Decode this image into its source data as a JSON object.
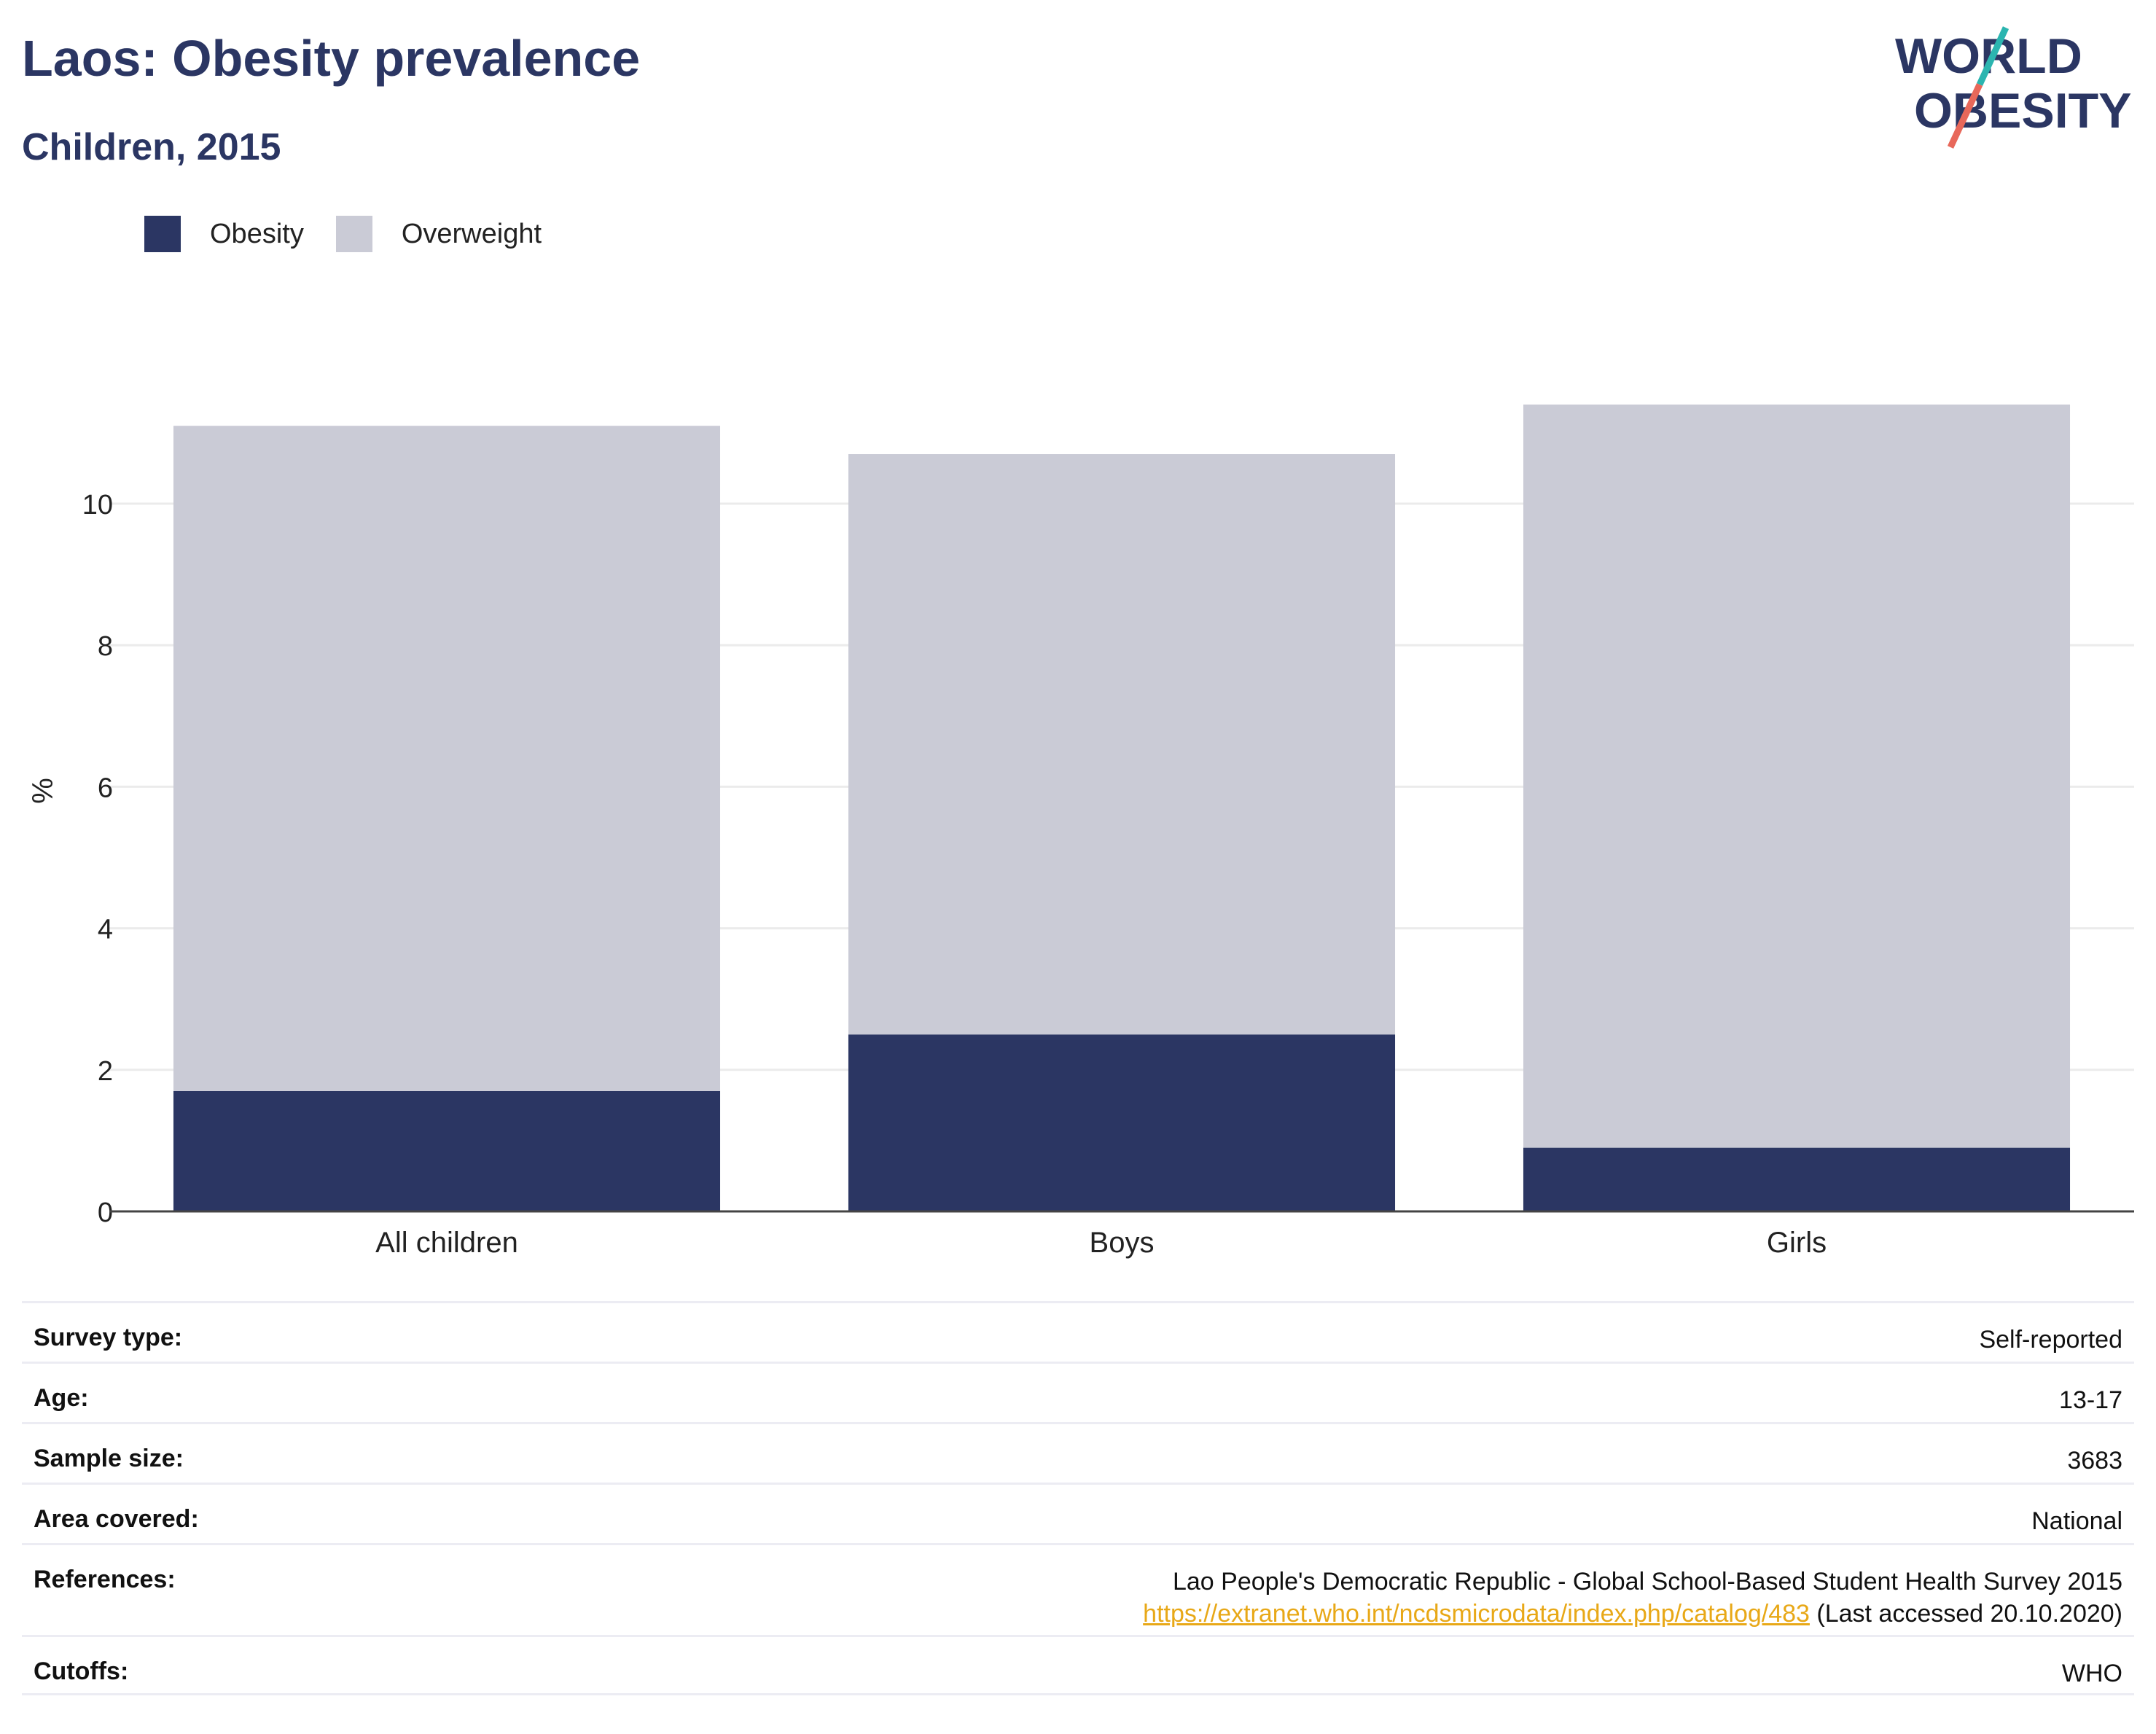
{
  "header": {
    "title": "Laos: Obesity prevalence",
    "subtitle": "Children, 2015"
  },
  "logo": {
    "line1": "WORLD",
    "line2": "OBESITY",
    "brand_color": "#2b3663",
    "accent_teal": "#2bb5b0",
    "accent_coral": "#e8685a"
  },
  "legend": [
    {
      "label": "Obesity",
      "color": "#2b3663"
    },
    {
      "label": "Overweight",
      "color": "#cacbd6"
    }
  ],
  "chart_data": {
    "type": "bar",
    "stacked": true,
    "categories": [
      "All children",
      "Boys",
      "Girls"
    ],
    "series": [
      {
        "name": "Obesity",
        "color": "#2b3663",
        "values": [
          1.7,
          2.5,
          0.9
        ]
      },
      {
        "name": "Overweight",
        "color": "#cacbd6",
        "values": [
          9.4,
          8.2,
          10.5
        ]
      }
    ],
    "ylabel": "%",
    "xlabel": "",
    "ylim": [
      0,
      11.5
    ],
    "yticks": [
      0,
      2,
      4,
      6,
      8,
      10
    ],
    "grid": true
  },
  "meta": {
    "survey_type": {
      "key": "Survey type:",
      "value": "Self-reported"
    },
    "age": {
      "key": "Age:",
      "value": "13-17"
    },
    "sample_size": {
      "key": "Sample size:",
      "value": "3683"
    },
    "area_covered": {
      "key": "Area covered:",
      "value": "National"
    },
    "references": {
      "key": "References:",
      "line1": "Lao People's Democratic Republic - Global School-Based Student Health Survey 2015",
      "link": "https://extranet.who.int/ncdsmicrodata/index.php/catalog/483",
      "suffix": " (Last accessed 20.10.2020)"
    },
    "cutoffs": {
      "key": "Cutoffs:",
      "value": "WHO"
    }
  }
}
